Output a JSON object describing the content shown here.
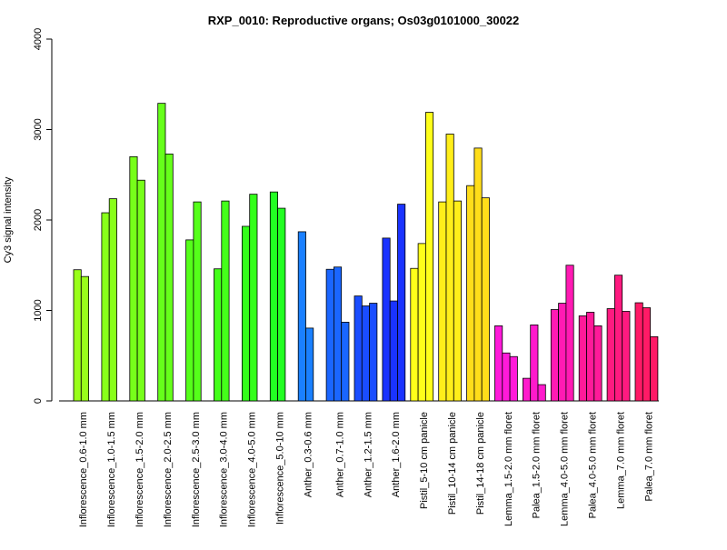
{
  "chart_data": {
    "type": "bar",
    "title": "RXP_0010: Reproductive organs; Os03g0101000_30022",
    "xlabel": "",
    "ylabel": "Cy3 signal intensity",
    "ylim": [
      0,
      4000
    ],
    "yticks": [
      "0",
      "1000",
      "2000",
      "3000",
      "4000"
    ],
    "grid": false,
    "legend": "none",
    "groups": [
      {
        "label": "Inflorescence_0.6-1.0 mm",
        "color": "#99ff1a",
        "values": [
          1450,
          1375
        ]
      },
      {
        "label": "Inflorescence_1.0-1.5 mm",
        "color": "#88ff1a",
        "values": [
          2080,
          2235
        ]
      },
      {
        "label": "Inflorescence_1.5-2.0 mm",
        "color": "#77ff1a",
        "values": [
          2700,
          2440
        ]
      },
      {
        "label": "Inflorescence_2.0-2.5 mm",
        "color": "#66ff1a",
        "values": [
          3290,
          2730
        ]
      },
      {
        "label": "Inflorescence_2.5-3.0 mm",
        "color": "#55ff1a",
        "values": [
          1780,
          2200
        ]
      },
      {
        "label": "Inflorescence_3.0-4.0 mm",
        "color": "#44ff1a",
        "values": [
          1460,
          2210
        ]
      },
      {
        "label": "Inflorescence_4.0-5.0 mm",
        "color": "#33ff1a",
        "values": [
          1930,
          2285
        ]
      },
      {
        "label": "Inflorescence_5.0-10 mm",
        "color": "#22ff22",
        "values": [
          2310,
          2130
        ]
      },
      {
        "label": "Anther_0.3-0.6 mm",
        "color": "#1a80ff",
        "values": [
          1870,
          805
        ]
      },
      {
        "label": "Anther_0.7-1.0 mm",
        "color": "#1a66ff",
        "values": [
          1455,
          1480,
          870
        ]
      },
      {
        "label": "Anther_1.2-1.5 mm",
        "color": "#1a4dff",
        "values": [
          1160,
          1050,
          1080
        ]
      },
      {
        "label": "Anther_1.6-2.0 mm",
        "color": "#1a33ff",
        "values": [
          1800,
          1105,
          2175
        ]
      },
      {
        "label": "Pistil_5-10 cm panicle",
        "color": "#ffff1a",
        "values": [
          1465,
          1740,
          3190
        ]
      },
      {
        "label": "Pistil_10-14 cm panicle",
        "color": "#ffee1a",
        "values": [
          2200,
          2950,
          2210
        ]
      },
      {
        "label": "Pistil_14-18 cm panicle",
        "color": "#ffdd1a",
        "values": [
          2380,
          2795,
          2245
        ]
      },
      {
        "label": "Lemma_1.5-2.0 mm floret",
        "color": "#ff1ad9",
        "values": [
          830,
          530,
          490
        ]
      },
      {
        "label": "Palea_1.5-2.0 mm floret",
        "color": "#ff1acc",
        "values": [
          250,
          840,
          180
        ]
      },
      {
        "label": "Lemma_4.0-5.0 mm floret",
        "color": "#ff1ab3",
        "values": [
          1010,
          1080,
          1500
        ]
      },
      {
        "label": "Palea_4.0-5.0 mm floret",
        "color": "#ff1a99",
        "values": [
          940,
          980,
          830
        ]
      },
      {
        "label": "Lemma_7.0 mm floret",
        "color": "#ff1a80",
        "values": [
          1020,
          1390,
          990
        ]
      },
      {
        "label": "Palea_7.0 mm floret",
        "color": "#ff1a66",
        "values": [
          1085,
          1030,
          710
        ]
      }
    ]
  }
}
